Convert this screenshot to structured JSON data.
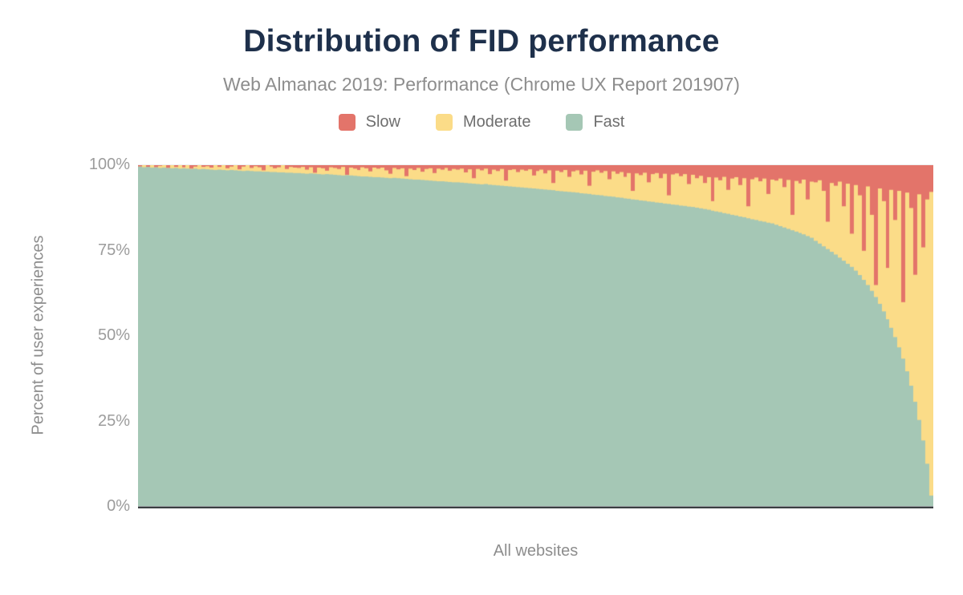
{
  "header": {
    "title": "Distribution of FID performance",
    "subtitle": "Web Almanac 2019: Performance (Chrome UX Report 201907)"
  },
  "legend": {
    "items": [
      {
        "label": "Slow",
        "color": "#e3746a"
      },
      {
        "label": "Moderate",
        "color": "#fbdc88"
      },
      {
        "label": "Fast",
        "color": "#a5c7b5"
      }
    ]
  },
  "axes": {
    "y_title": "Percent of user experiences",
    "y_ticks": [
      "100%",
      "75%",
      "50%",
      "25%",
      "0%"
    ],
    "x_title": "All websites"
  },
  "chart_data": {
    "type": "bar",
    "stacked": true,
    "normalized_to_100_percent": true,
    "title": "Distribution of FID performance",
    "subtitle": "Web Almanac 2019: Performance (Chrome UX Report 201907)",
    "xlabel": "All websites",
    "ylabel": "Percent of user experiences",
    "ylim": [
      0,
      100
    ],
    "y_tick_labels": [
      "0%",
      "25%",
      "50%",
      "75%",
      "100%"
    ],
    "grid": false,
    "legend_position": "top",
    "n_bars": 200,
    "x_description": "Websites sorted descending by percent of fast FID experiences; 200 sampled columns spanning the full population",
    "stack_order_bottom_to_top": [
      "Fast",
      "Moderate",
      "Slow"
    ],
    "series": [
      {
        "name": "Fast",
        "color": "#a5c7b5",
        "values": [
          99.6,
          99.4,
          99.5,
          99.3,
          99.4,
          99.2,
          99.3,
          99.2,
          99.1,
          99.2,
          99.0,
          99.1,
          99.0,
          98.9,
          99.0,
          98.8,
          98.9,
          98.8,
          98.7,
          98.6,
          98.7,
          98.6,
          98.5,
          98.6,
          98.5,
          98.4,
          98.3,
          98.4,
          98.3,
          98.2,
          98.2,
          98.1,
          98.1,
          98.0,
          98.0,
          97.9,
          97.9,
          97.8,
          97.8,
          97.7,
          97.7,
          97.6,
          97.5,
          97.6,
          97.5,
          97.4,
          97.3,
          97.4,
          97.3,
          97.2,
          97.1,
          97.0,
          97.1,
          97.0,
          96.9,
          96.8,
          96.7,
          96.7,
          96.6,
          96.5,
          96.5,
          96.4,
          96.3,
          96.2,
          96.3,
          96.2,
          96.1,
          96.0,
          95.9,
          95.8,
          95.8,
          95.7,
          95.6,
          95.5,
          95.4,
          95.3,
          95.3,
          95.2,
          95.1,
          95.0,
          95.0,
          94.9,
          94.8,
          94.7,
          94.6,
          94.5,
          94.4,
          94.5,
          94.3,
          94.2,
          94.1,
          94.0,
          93.9,
          93.8,
          93.7,
          93.6,
          93.5,
          93.4,
          93.3,
          93.2,
          93.1,
          93.0,
          92.9,
          92.8,
          92.7,
          92.5,
          92.4,
          92.3,
          92.2,
          92.1,
          92.0,
          91.8,
          91.7,
          91.6,
          91.4,
          91.3,
          91.2,
          91.0,
          90.9,
          90.8,
          90.6,
          90.5,
          90.3,
          90.2,
          90.0,
          89.9,
          89.7,
          89.6,
          89.4,
          89.3,
          89.1,
          89.0,
          88.8,
          88.7,
          88.5,
          88.4,
          88.2,
          88.1,
          87.9,
          87.8,
          87.6,
          87.4,
          87.2,
          87.0,
          86.7,
          86.5,
          86.3,
          86.0,
          85.8,
          85.5,
          85.3,
          85.0,
          84.8,
          84.5,
          84.2,
          84.0,
          83.7,
          83.5,
          83.2,
          83.0,
          82.6,
          82.2,
          81.8,
          81.4,
          81.0,
          80.6,
          80.2,
          79.8,
          79.3,
          78.8,
          77.9,
          77.1,
          76.3,
          75.5,
          74.7,
          73.9,
          73.0,
          72.1,
          71.2,
          70.3,
          69.2,
          67.9,
          66.5,
          65.0,
          63.3,
          61.5,
          59.5,
          57.3,
          55.0,
          52.5,
          49.8,
          46.8,
          43.5,
          39.8,
          35.6,
          30.9,
          25.6,
          19.6,
          12.8,
          3.5
        ]
      },
      {
        "name": "Slow",
        "color": "#e3746a",
        "values": [
          0.4,
          0,
          0.5,
          0,
          0.6,
          0.2,
          0,
          0.8,
          0,
          0.5,
          0,
          0.6,
          0,
          1.0,
          0.4,
          0,
          0.5,
          0.3,
          0.7,
          0,
          0.5,
          0,
          0.9,
          0.4,
          0,
          1.2,
          0.4,
          0,
          0.8,
          0.3,
          0.6,
          1.5,
          0,
          0.4,
          0.9,
          0.6,
          0,
          1.1,
          0.5,
          0.7,
          0.8,
          0.5,
          1.3,
          0.6,
          2.2,
          0.7,
          0.9,
          1.6,
          0.6,
          0.8,
          1.1,
          0.5,
          2.8,
          0.7,
          1.0,
          1.4,
          0.6,
          0.9,
          1.8,
          0.7,
          1.0,
          0.7,
          1.5,
          2.5,
          0.8,
          1.2,
          0.9,
          3.2,
          1.0,
          1.4,
          0.8,
          1.9,
          1.1,
          0.9,
          2.3,
          1.0,
          1.3,
          0.8,
          1.6,
          1.1,
          1.3,
          1.0,
          2.1,
          1.2,
          3.8,
          1.1,
          1.5,
          1.0,
          2.6,
          1.3,
          1.7,
          1.1,
          4.5,
          1.4,
          1.2,
          2.0,
          1.3,
          1.6,
          1.2,
          3.0,
          1.7,
          1.3,
          2.4,
          1.5,
          5.2,
          1.6,
          2.0,
          1.4,
          3.4,
          1.8,
          1.5,
          2.7,
          1.6,
          6.0,
          1.9,
          1.5,
          2.2,
          1.7,
          4.1,
          1.8,
          2.5,
          2.0,
          3.4,
          2.3,
          7.5,
          2.4,
          2.9,
          2.2,
          5.0,
          2.6,
          2.3,
          3.8,
          2.5,
          8.8,
          2.7,
          2.4,
          3.2,
          2.6,
          5.5,
          2.8,
          3.8,
          3.1,
          5.2,
          3.5,
          10.5,
          3.6,
          4.4,
          3.4,
          7.2,
          3.9,
          3.5,
          5.8,
          3.8,
          12.0,
          4.1,
          3.6,
          4.7,
          3.9,
          8.4,
          4.2,
          4.5,
          3.9,
          6.4,
          4.3,
          14.5,
          4.6,
          5.3,
          4.2,
          10.0,
          4.8,
          5.0,
          4.4,
          7.5,
          16.5,
          5.2,
          6.0,
          4.8,
          12.0,
          5.4,
          20.0,
          5.8,
          8.8,
          25.0,
          6.2,
          14.5,
          35.0,
          6.8,
          10.5,
          30.0,
          7.2,
          16.0,
          7.5,
          40.0,
          8.0,
          12.5,
          32.0,
          8.5,
          24.0,
          10.0,
          7.8
        ]
      },
      {
        "name": "Moderate",
        "color": "#fbdc88",
        "derived_from": "100 - Fast - Slow"
      }
    ]
  }
}
